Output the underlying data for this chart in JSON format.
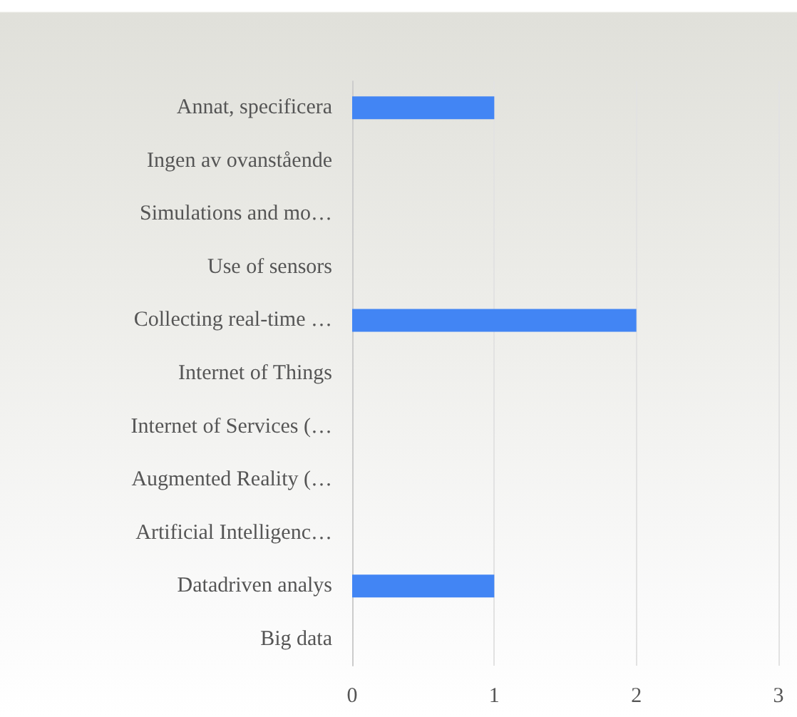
{
  "chart_data": {
    "type": "bar",
    "orientation": "horizontal",
    "categories": [
      "Annat, specificera",
      "Ingen av ovanstående",
      "Simulations and mo…",
      "Use of sensors",
      "Collecting real-time …",
      "Internet of Things",
      "Internet of Services (…",
      "Augmented Reality (…",
      "Artificial Intelligenc…",
      "Datadriven analys",
      "Big data"
    ],
    "values": [
      1,
      0,
      0,
      0,
      2,
      0,
      0,
      0,
      0,
      1,
      0
    ],
    "color": "#4285f4",
    "xlim": [
      0,
      3
    ],
    "xticks": [
      0,
      1,
      2,
      3
    ],
    "grid": "x"
  }
}
